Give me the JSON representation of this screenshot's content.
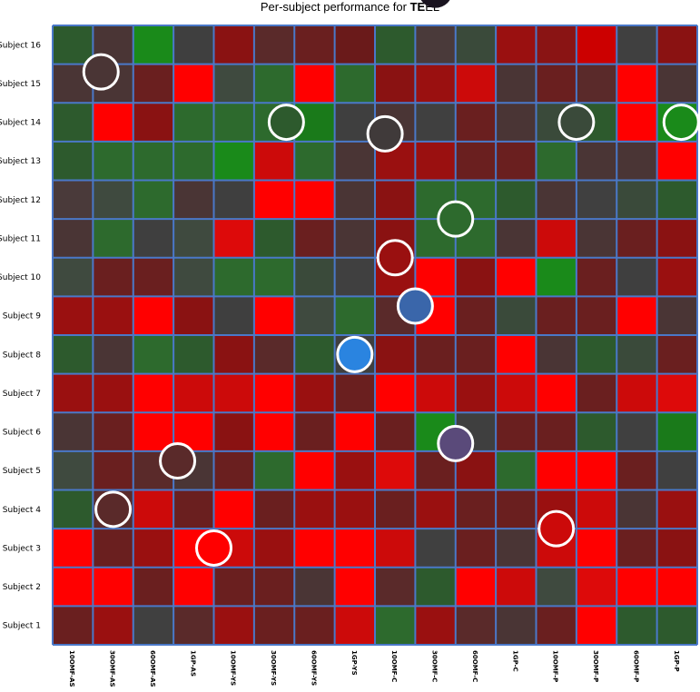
{
  "chart_data": {
    "type": "heatmap",
    "title_prefix": "Per-subject performance for ",
    "title_bold": "TE",
    "title_suffix": "EL",
    "x_categories": [
      "10OMF-AS",
      "30OMF-AS",
      "60OMF-AS",
      "1GP-AS",
      "10OMF-YS",
      "30OMF-YS",
      "60OMF-YS",
      "1GP-YS",
      "10OMF-C",
      "30OMF-C",
      "60OMF-C",
      "1GP-C",
      "10OMF-P",
      "30OMF-P",
      "60OMF-P",
      "1GP-P"
    ],
    "y_categories": [
      "Subject 16",
      "Subject 15",
      "Subject 14",
      "Subject 13",
      "Subject 12",
      "Subject 11",
      "Subject 10",
      "Subject 9",
      "Subject 8",
      "Subject 7",
      "Subject 6",
      "Subject 5",
      "Subject 4",
      "Subject 3",
      "Subject 2",
      "Subject 1"
    ],
    "cells": [
      [
        "#2d5a2d",
        "#4a3535",
        "#1a8a1a",
        "#3f3f3f",
        "#8a1212",
        "#5a2a2a",
        "#6a1f1f",
        "#6a1a1a",
        "#2d5a2d",
        "#4a3a3a",
        "#3a4a3a",
        "#9a1010",
        "#8a1414",
        "#cc0000",
        "#404040",
        "#8a1212"
      ],
      [
        "#4a3535",
        "#4a3535",
        "#6a1f1f",
        "#ff0000",
        "#3f4a3f",
        "#2d6a2d",
        "#ff0000",
        "#2d6a2d",
        "#8a1212",
        "#9a1010",
        "#cc0a0a",
        "#4a3535",
        "#6a1f1f",
        "#5a2a2a",
        "#ff0000",
        "#4a3535"
      ],
      [
        "#2d5a2d",
        "#ff0000",
        "#8a1212",
        "#2d6a2d",
        "#2d6a2d",
        "#2d6a2d",
        "#1a7a1a",
        "#3f3f3f",
        "#4a3535",
        "#404040",
        "#6a1f1f",
        "#4a3535",
        "#3a4a3a",
        "#2d5a2d",
        "#ff0000",
        "#1a8a1a"
      ],
      [
        "#2d5a2d",
        "#2d6a2d",
        "#2d6a2d",
        "#2d6a2d",
        "#1a8a1a",
        "#cc0a0a",
        "#2d6a2d",
        "#4a3535",
        "#9a1010",
        "#9a1010",
        "#6a1f1f",
        "#6a1f1f",
        "#2d6a2d",
        "#4a3535",
        "#4a3535",
        "#ff0000"
      ],
      [
        "#4a3a3a",
        "#3f4a3f",
        "#2d6a2d",
        "#4a3535",
        "#3f3f3f",
        "#ff0000",
        "#ff0000",
        "#4a3535",
        "#8a1212",
        "#2d6a2d",
        "#2d6a2d",
        "#2d5a2d",
        "#4a3535",
        "#404040",
        "#3a4a3a",
        "#2d5a2d"
      ],
      [
        "#4a3535",
        "#2d6a2d",
        "#3f3f3f",
        "#3f4a3f",
        "#dd0a0a",
        "#2d5a2d",
        "#6a1f1f",
        "#4a3535",
        "#8a1212",
        "#2d6a2d",
        "#2d6a2d",
        "#4a3535",
        "#cc0a0a",
        "#4a3535",
        "#6a1f1f",
        "#8a1212"
      ],
      [
        "#3f4a3f",
        "#6a1f1f",
        "#6a1f1f",
        "#3f4a3f",
        "#2d6a2d",
        "#2d6a2d",
        "#3a4a3a",
        "#404040",
        "#9a1010",
        "#ff0000",
        "#8a1212",
        "#ff0000",
        "#1a8a1a",
        "#6a1f1f",
        "#3f3f3f",
        "#9a1010"
      ],
      [
        "#9a1010",
        "#9a1010",
        "#ff0000",
        "#8a1212",
        "#3f3f3f",
        "#ff0000",
        "#3f4a3f",
        "#2d6a2d",
        "#5a2a2a",
        "#ff0000",
        "#6a1f1f",
        "#3a4a3a",
        "#6a1f1f",
        "#6a1f1f",
        "#ff0000",
        "#4a3535"
      ],
      [
        "#2d5a2d",
        "#4a3535",
        "#2d6a2d",
        "#2d5a2d",
        "#8a1212",
        "#5a2a2a",
        "#2d5a2d",
        "#3f3f3f",
        "#8a1212",
        "#6a1f1f",
        "#6a1f1f",
        "#ff0000",
        "#4a3535",
        "#2d5a2d",
        "#3a4a3a",
        "#6a1f1f"
      ],
      [
        "#9a1010",
        "#9a1010",
        "#ff0000",
        "#cc0a0a",
        "#cc0a0a",
        "#ff0000",
        "#9a1010",
        "#6a1f1f",
        "#ff0000",
        "#cc0a0a",
        "#9a1010",
        "#cc0a0a",
        "#ff0000",
        "#6a1f1f",
        "#cc0a0a",
        "#dd0a0a"
      ],
      [
        "#4a3535",
        "#6a1f1f",
        "#ff0000",
        "#ff0000",
        "#8a1212",
        "#ff0000",
        "#6a1f1f",
        "#ff0000",
        "#6a1f1f",
        "#1a8a1a",
        "#3f3f3f",
        "#6a1f1f",
        "#6a1f1f",
        "#2d5a2d",
        "#404040",
        "#1a7a1a"
      ],
      [
        "#3f4a3f",
        "#6a1f1f",
        "#5a2a2a",
        "#4a3535",
        "#6a1f1f",
        "#2d6a2d",
        "#ff0000",
        "#9a1010",
        "#dd0a0a",
        "#6a1f1f",
        "#8a1212",
        "#2d6a2d",
        "#ff0000",
        "#ff0000",
        "#6a1f1f",
        "#404040"
      ],
      [
        "#2d5a2d",
        "#5a2a2a",
        "#cc0a0a",
        "#6a1f1f",
        "#ff0000",
        "#6a1f1f",
        "#9a1010",
        "#9a1010",
        "#6a1f1f",
        "#9a1010",
        "#6a1f1f",
        "#6a1f1f",
        "#9a1010",
        "#cc0a0a",
        "#4a3535",
        "#9a1010"
      ],
      [
        "#ff0000",
        "#6a1f1f",
        "#9a1010",
        "#ff0000",
        "#cc0a0a",
        "#9a1010",
        "#ff0000",
        "#ff0000",
        "#cc0a0a",
        "#404040",
        "#6a1f1f",
        "#4a3535",
        "#cc0a0a",
        "#ff0000",
        "#6a1f1f",
        "#8a1212"
      ],
      [
        "#ff0000",
        "#ff0000",
        "#6a1f1f",
        "#ff0000",
        "#6a1f1f",
        "#6a1f1f",
        "#4a3535",
        "#ff0000",
        "#5a2a2a",
        "#2d5a2d",
        "#ff0000",
        "#cc0a0a",
        "#3f4a3f",
        "#dd0a0a",
        "#ff0000",
        "#ff0000"
      ],
      [
        "#6a1f1f",
        "#9a1010",
        "#404040",
        "#5a2a2a",
        "#9a1010",
        "#6a1f1f",
        "#6a1f1f",
        "#cc0a0a",
        "#2d6a2d",
        "#9a1010",
        "#5a2a2a",
        "#4a3535",
        "#6a1f1f",
        "#ff0000",
        "#2d5a2d",
        "#2d5a2d"
      ]
    ],
    "grid_color": "#4a78c8",
    "markers": [
      {
        "col": 9.5,
        "row": -0.9,
        "fill": "#1a1420",
        "outline": "none"
      },
      {
        "col": 1.2,
        "row": 1.2,
        "fill": "#4a3535",
        "outline": "#ffffff"
      },
      {
        "col": 5.8,
        "row": 2.5,
        "fill": "#2d5a2d",
        "outline": "#ffffff"
      },
      {
        "col": 8.25,
        "row": 2.8,
        "fill": "#403a3a",
        "outline": "#ffffff"
      },
      {
        "col": 13.0,
        "row": 2.5,
        "fill": "#3a4a3a",
        "outline": "#ffffff"
      },
      {
        "col": 15.6,
        "row": 2.5,
        "fill": "#1a8a1a",
        "outline": "#ffffff"
      },
      {
        "col": 10.0,
        "row": 5.0,
        "fill": "#2d6a2d",
        "outline": "#ffffff"
      },
      {
        "col": 8.5,
        "row": 6.0,
        "fill": "#9a1010",
        "outline": "#ffffff"
      },
      {
        "col": 9.0,
        "row": 7.25,
        "fill": "#3a66aa",
        "outline": "#ffffff"
      },
      {
        "col": 7.5,
        "row": 8.5,
        "fill": "#2a84e0",
        "outline": "#ffffff"
      },
      {
        "col": 10.0,
        "row": 10.8,
        "fill": "#5a4a7a",
        "outline": "#ffffff"
      },
      {
        "col": 3.1,
        "row": 11.25,
        "fill": "#5a2a2a",
        "outline": "#ffffff"
      },
      {
        "col": 1.5,
        "row": 12.5,
        "fill": "#5a2a2a",
        "outline": "#ffffff"
      },
      {
        "col": 4.0,
        "row": 13.5,
        "fill": "#ff0000",
        "outline": "#ffffff"
      },
      {
        "col": 12.5,
        "row": 13.0,
        "fill": "#cc0a0a",
        "outline": "#ffffff"
      }
    ]
  }
}
